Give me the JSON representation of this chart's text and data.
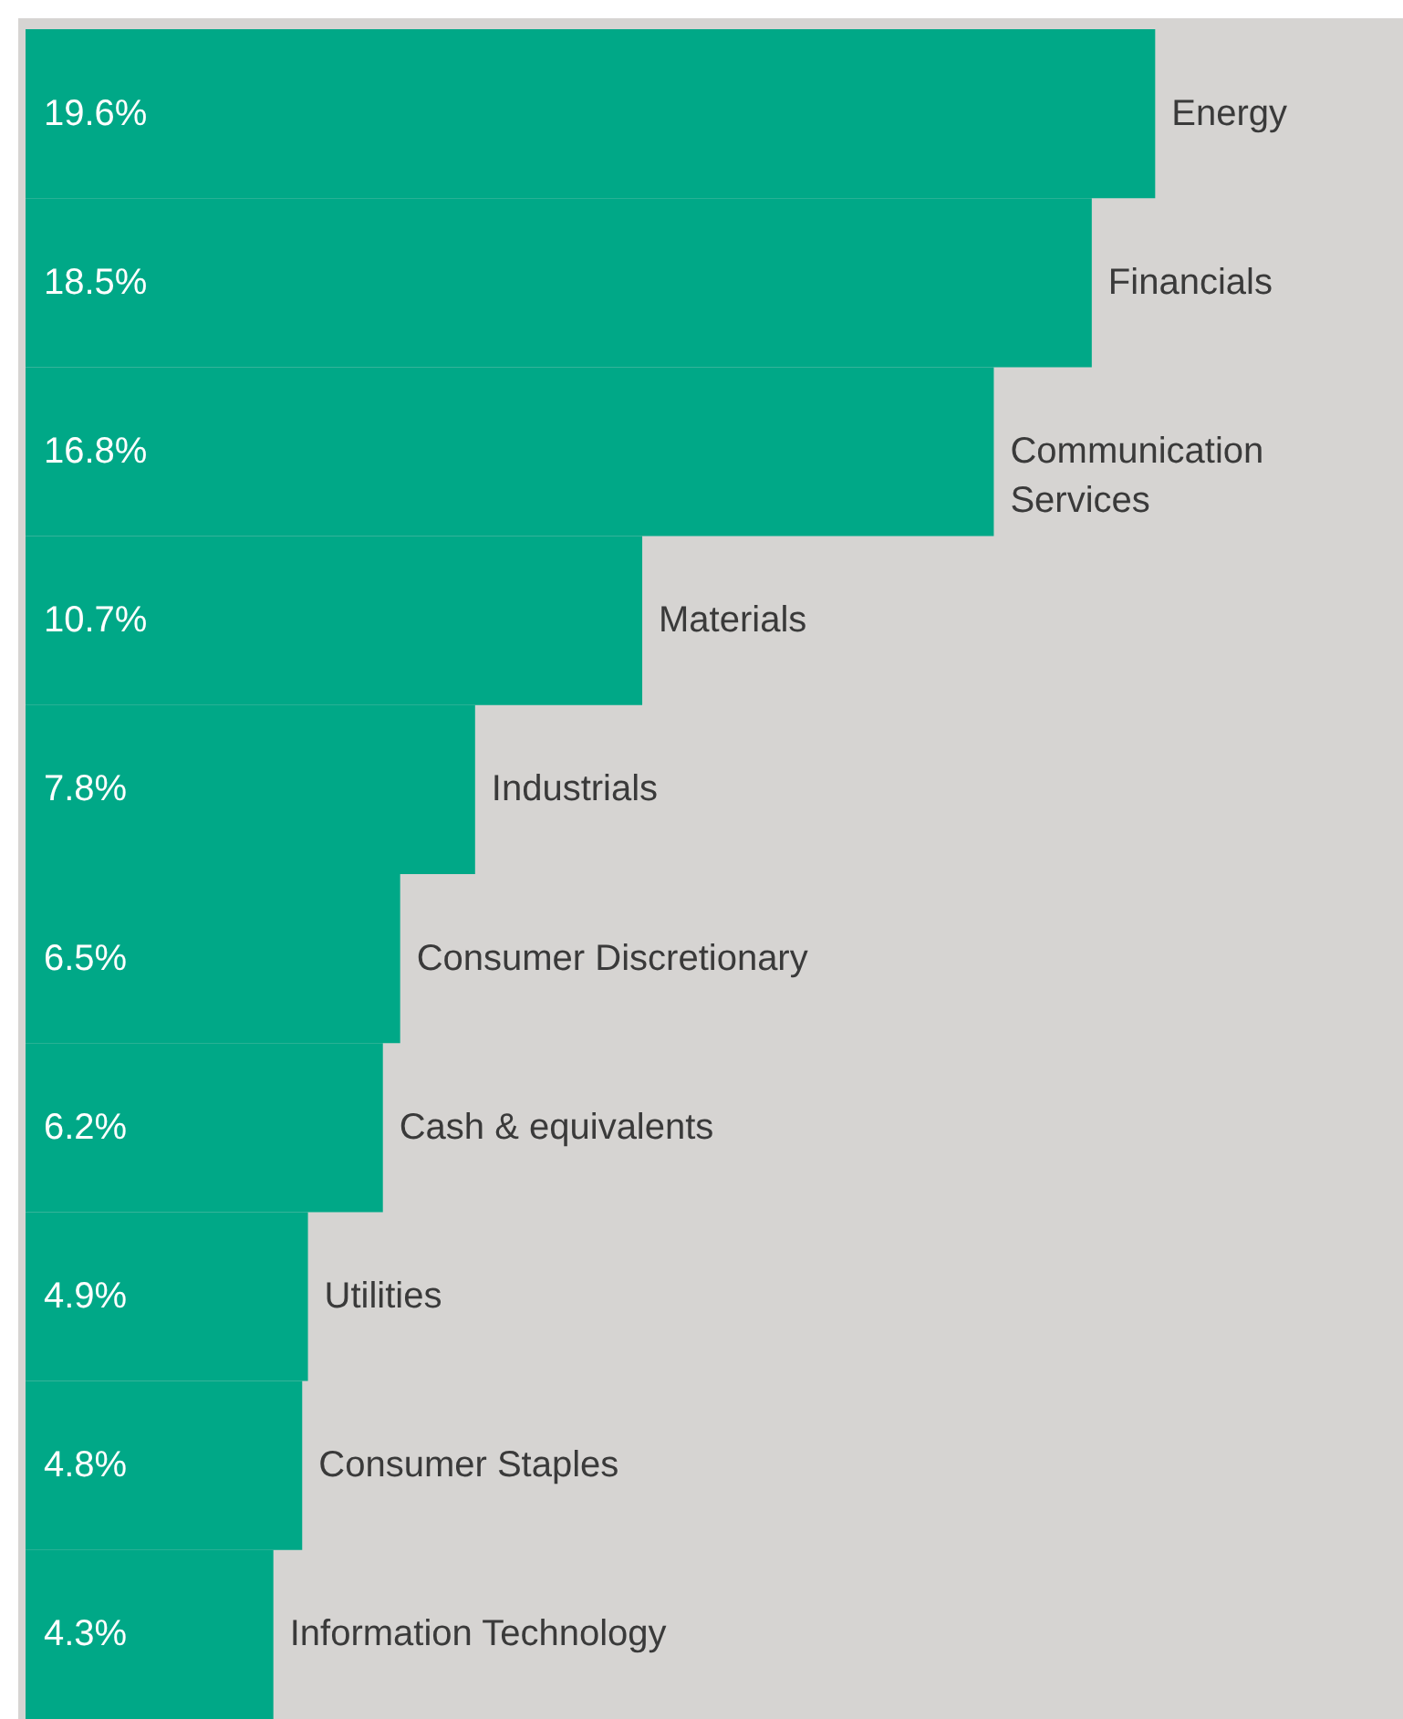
{
  "chart_data": {
    "type": "bar",
    "orientation": "horizontal",
    "categories": [
      "Energy",
      "Financials",
      "Communication Services",
      "Materials",
      "Industrials",
      "Consumer Discretionary",
      "Cash & equivalents",
      "Utilities",
      "Consumer Staples",
      "Information Technology"
    ],
    "values": [
      19.6,
      18.5,
      16.8,
      10.7,
      7.8,
      6.5,
      6.2,
      4.9,
      4.8,
      4.3
    ],
    "value_labels": [
      "19.6%",
      "18.5%",
      "16.8%",
      "10.7%",
      "7.8%",
      "6.5%",
      "6.2%",
      "4.9%",
      "4.8%",
      "4.3%"
    ],
    "color": "#00a887",
    "xlim": [
      0,
      23.9
    ],
    "tick_labels": false
  }
}
